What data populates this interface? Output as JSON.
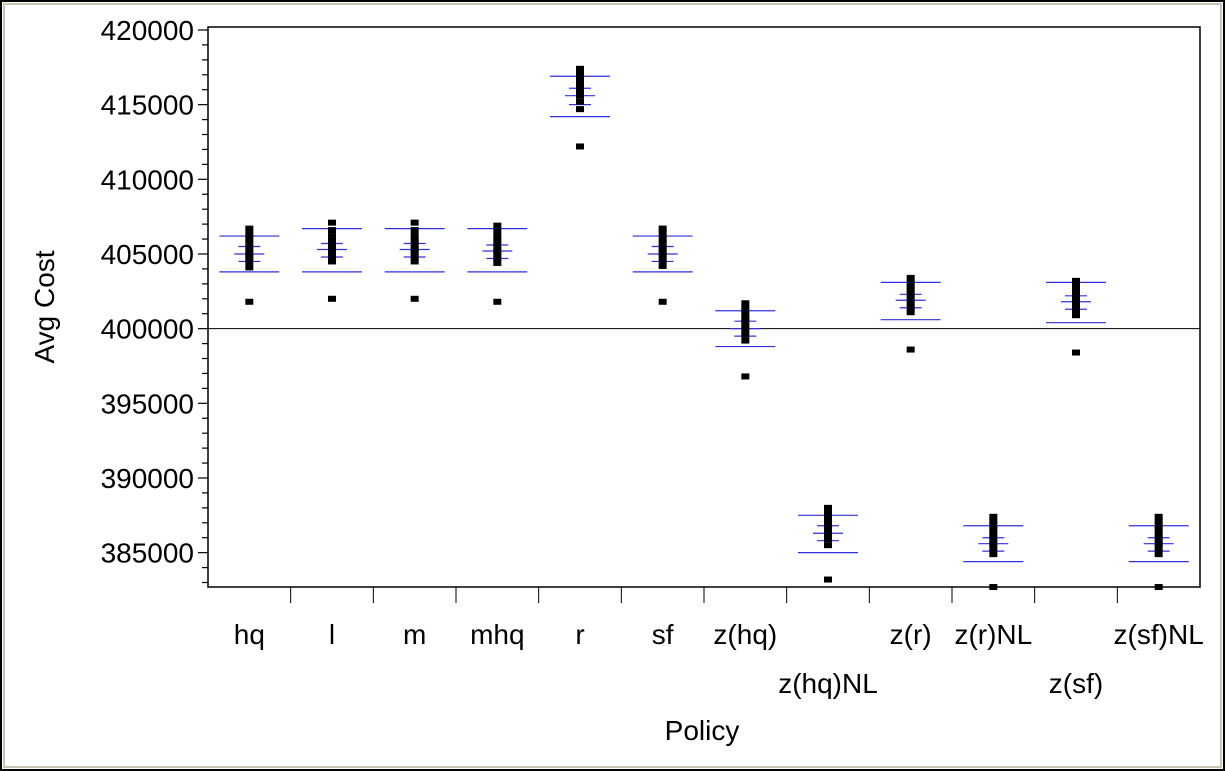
{
  "chart_data": {
    "type": "scatter",
    "xlabel": "Policy",
    "ylabel": "Avg Cost",
    "categories": [
      "hq",
      "l",
      "m",
      "mhq",
      "r",
      "sf",
      "z(hq)",
      "z(hq)NL",
      "z(r)",
      "z(r)NL",
      "z(sf)",
      "z(sf)NL"
    ],
    "staggered_labels": [
      "z(hq)NL",
      "z(sf)"
    ],
    "ylim": [
      382700,
      420200
    ],
    "y_ticks": [
      385000,
      390000,
      395000,
      400000,
      405000,
      410000,
      415000,
      420000
    ],
    "reference_line": 400000,
    "grid": false,
    "series": [
      {
        "category": "hq",
        "points": [
          401800,
          404100,
          404500,
          404800,
          405000,
          405300,
          405700,
          406000,
          406300,
          406700
        ],
        "mean": 405000,
        "ci": [
          404500,
          405500
        ],
        "sd_band": [
          403800,
          406200
        ]
      },
      {
        "category": "l",
        "points": [
          402000,
          404500,
          404800,
          405100,
          405300,
          405600,
          405900,
          406200,
          406600,
          407100
        ],
        "mean": 405300,
        "ci": [
          404800,
          405700
        ],
        "sd_band": [
          403800,
          406700
        ]
      },
      {
        "category": "m",
        "points": [
          402000,
          404500,
          404800,
          405100,
          405300,
          405600,
          405900,
          406200,
          406600,
          407100
        ],
        "mean": 405300,
        "ci": [
          404800,
          405700
        ],
        "sd_band": [
          403800,
          406700
        ]
      },
      {
        "category": "mhq",
        "points": [
          401800,
          404400,
          404700,
          405000,
          405200,
          405500,
          405800,
          406100,
          406500,
          406900
        ],
        "mean": 405200,
        "ci": [
          404700,
          405600
        ],
        "sd_band": [
          403800,
          406700
        ]
      },
      {
        "category": "r",
        "points": [
          412200,
          414700,
          415200,
          415600,
          415900,
          416200,
          416500,
          416800,
          417100,
          417400
        ],
        "mean": 415600,
        "ci": [
          415000,
          416100
        ],
        "sd_band": [
          414200,
          416900
        ]
      },
      {
        "category": "sf",
        "points": [
          401800,
          404200,
          404600,
          404900,
          405100,
          405400,
          405700,
          406000,
          406400,
          406700
        ],
        "mean": 405000,
        "ci": [
          404500,
          405500
        ],
        "sd_band": [
          403800,
          406200
        ]
      },
      {
        "category": "z(hq)",
        "points": [
          396800,
          399200,
          399600,
          399900,
          400200,
          400500,
          400700,
          401000,
          401400,
          401700
        ],
        "mean": 400000,
        "ci": [
          399500,
          400500
        ],
        "sd_band": [
          398800,
          401200
        ]
      },
      {
        "category": "z(hq)NL",
        "points": [
          383200,
          385500,
          385900,
          386200,
          386500,
          386800,
          387100,
          387400,
          387700,
          388000
        ],
        "mean": 386300,
        "ci": [
          385800,
          386800
        ],
        "sd_band": [
          385000,
          387500
        ]
      },
      {
        "category": "z(r)",
        "points": [
          398600,
          401100,
          401400,
          401700,
          402000,
          402300,
          402600,
          402800,
          403100,
          403400
        ],
        "mean": 401900,
        "ci": [
          401400,
          402300
        ],
        "sd_band": [
          400600,
          403100
        ]
      },
      {
        "category": "z(r)NL",
        "points": [
          382700,
          384900,
          385300,
          385600,
          385900,
          386200,
          386500,
          386800,
          387100,
          387400
        ],
        "mean": 385600,
        "ci": [
          385100,
          386000
        ],
        "sd_band": [
          384400,
          386800
        ]
      },
      {
        "category": "z(sf)",
        "points": [
          398400,
          400900,
          401200,
          401500,
          401800,
          402100,
          402400,
          402700,
          403000,
          403200
        ],
        "mean": 401800,
        "ci": [
          401300,
          402200
        ],
        "sd_band": [
          400400,
          403100
        ]
      },
      {
        "category": "z(sf)NL",
        "points": [
          382700,
          384900,
          385300,
          385600,
          385900,
          386200,
          386500,
          386800,
          387100,
          387400
        ],
        "mean": 385600,
        "ci": [
          385100,
          386000
        ],
        "sd_band": [
          384400,
          386800
        ]
      }
    ]
  }
}
